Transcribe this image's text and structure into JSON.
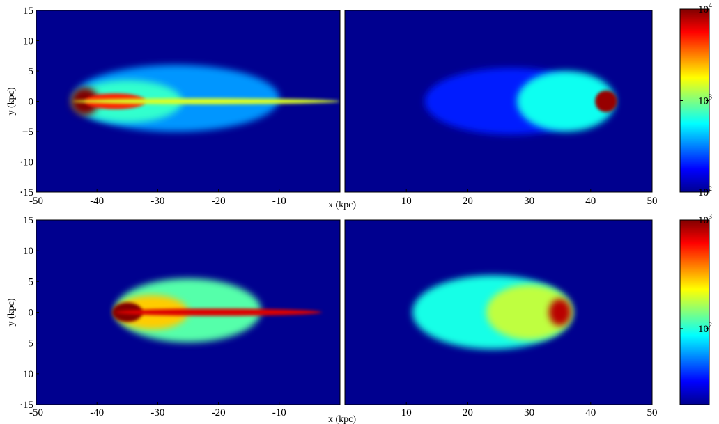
{
  "chart_data": [
    {
      "type": "heatmap",
      "row": "top",
      "xlabel": "x (kpc)",
      "ylabel": "y (kpc)",
      "xlim": [
        -50,
        50
      ],
      "ylim": [
        -15,
        15
      ],
      "x_ticks": [
        "-50",
        "-40",
        "-30",
        "-20",
        "-10",
        "10",
        "20",
        "30",
        "40",
        "50"
      ],
      "y_ticks": [
        "15",
        "10",
        "5",
        "0",
        "-5",
        "-10",
        "-15"
      ],
      "y_tick_labels_shown": [
        "15",
        "10",
        "5",
        "0",
        "−5",
        "·10",
        "·15"
      ],
      "colorscale": "jet",
      "log_scale": true,
      "colorbar": {
        "min_exp": 2,
        "max_exp": 4,
        "ticks": [
          {
            "base": "10",
            "exp": "4",
            "value": 10000
          },
          {
            "base": "10",
            "exp": "3",
            "value": 1000
          },
          {
            "base": "10",
            "exp": "2",
            "value": 100
          }
        ]
      },
      "background_color": "#00008f",
      "panels": [
        {
          "side": "left",
          "xrange": [
            -50,
            0
          ],
          "blobs": [
            {
              "cx": -27,
              "cy": 0.5,
              "rx": 17,
              "ry": 5.5,
              "value": 350
            },
            {
              "cx": -35,
              "cy": 0,
              "rx": 9,
              "ry": 3.5,
              "value": 700
            },
            {
              "cx": -42,
              "cy": 0,
              "rx": 2.3,
              "ry": 2.3,
              "value": 11000
            },
            {
              "cx": -37,
              "cy": 0,
              "rx": 5,
              "ry": 1.3,
              "value": 5000
            },
            {
              "cx": -22,
              "cy": 0,
              "rx": 22,
              "ry": 0.5,
              "value": 1500
            }
          ]
        },
        {
          "side": "right",
          "xrange": [
            0,
            50
          ],
          "blobs": [
            {
              "cx": 27,
              "cy": 0,
              "rx": 14,
              "ry": 5.5,
              "value": 200
            },
            {
              "cx": 36,
              "cy": 0,
              "rx": 8,
              "ry": 5,
              "value": 600
            },
            {
              "cx": 42.5,
              "cy": 0,
              "rx": 1.8,
              "ry": 1.8,
              "value": 9000
            }
          ]
        }
      ]
    },
    {
      "type": "heatmap",
      "row": "bottom",
      "xlabel": "x (kpc)",
      "ylabel": "y (kpc)",
      "xlim": [
        -50,
        50
      ],
      "ylim": [
        -15,
        15
      ],
      "x_ticks": [
        "-50",
        "-40",
        "-30",
        "-20",
        "-10",
        "10",
        "20",
        "30",
        "40",
        "50"
      ],
      "y_ticks": [
        "15",
        "10",
        "5",
        "0",
        "-5",
        "-10",
        "-15"
      ],
      "y_tick_labels_shown": [
        "15",
        "10",
        "5",
        "0",
        "−5",
        "10",
        "·15"
      ],
      "colorscale": "jet",
      "log_scale": true,
      "colorbar": {
        "min_exp": 1.3,
        "max_exp": 3,
        "ticks": [
          {
            "base": "10",
            "exp": "3",
            "value": 1000
          },
          {
            "base": "10",
            "exp": "2",
            "value": 100
          }
        ]
      },
      "background_color": "#00008f",
      "panels": [
        {
          "side": "left",
          "xrange": [
            -50,
            0
          ],
          "blobs": [
            {
              "cx": -25,
              "cy": 0.3,
              "rx": 12,
              "ry": 5.2,
              "value": 120
            },
            {
              "cx": -31,
              "cy": 0,
              "rx": 6,
              "ry": 2.8,
              "value": 280
            },
            {
              "cx": -35,
              "cy": 0,
              "rx": 2.5,
              "ry": 1.6,
              "value": 1200
            },
            {
              "cx": -20,
              "cy": 0,
              "rx": 17,
              "ry": 0.6,
              "value": 700
            }
          ]
        },
        {
          "side": "right",
          "xrange": [
            0,
            50
          ],
          "blobs": [
            {
              "cx": 24,
              "cy": 0,
              "rx": 13,
              "ry": 6,
              "value": 95
            },
            {
              "cx": 30,
              "cy": 0,
              "rx": 7,
              "ry": 4.5,
              "value": 180
            },
            {
              "cx": 35,
              "cy": 0,
              "rx": 1.8,
              "ry": 2.2,
              "value": 800
            }
          ]
        }
      ]
    }
  ]
}
